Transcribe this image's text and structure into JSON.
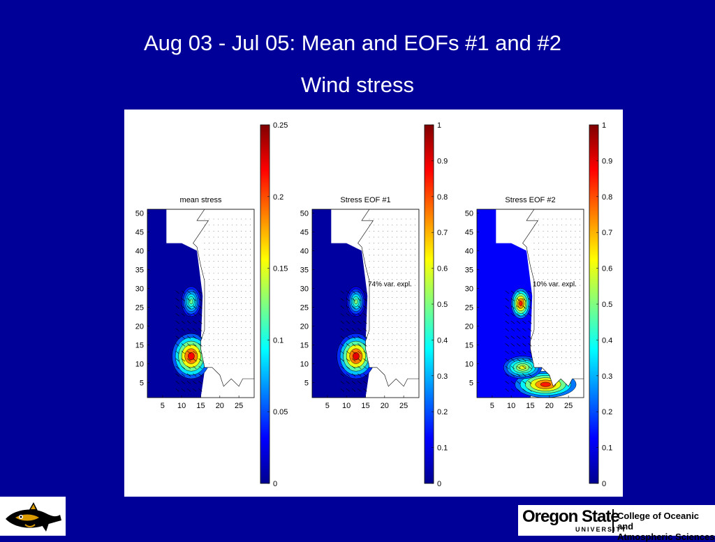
{
  "slide": {
    "title": "Aug 03 - Jul 05: Mean and EOFs #1 and #2",
    "subtitle": "Wind stress"
  },
  "footer": {
    "university_name": "Oregon State",
    "university_word": "UNIVERSITY",
    "college_line1": "College of Oceanic and",
    "college_line2": "Atmospheric Sciences"
  },
  "colors": {
    "background": "#000099",
    "jet_colormap": [
      "#00008f",
      "#0000ff",
      "#0080ff",
      "#00ffff",
      "#80ff80",
      "#ffff00",
      "#ff8000",
      "#ff0000",
      "#800000"
    ]
  },
  "chart_data": [
    {
      "type": "heatmap",
      "title": "mean stress",
      "x_ticks": [
        5,
        10,
        15,
        20,
        25
      ],
      "y_ticks": [
        5,
        10,
        15,
        20,
        25,
        30,
        35,
        40,
        45,
        50
      ],
      "xlim": [
        1,
        29
      ],
      "ylim": [
        1,
        51
      ],
      "colorbar": {
        "min": 0,
        "max": 0.25,
        "ticks": [
          "0",
          "0.05",
          "0.1",
          "0.15",
          "0.2",
          "0.25"
        ]
      },
      "annotation": "",
      "hotspots": [
        {
          "x": 12.5,
          "y": 12,
          "peak": 0.22,
          "rx": 5,
          "ry": 6
        },
        {
          "x": 12.5,
          "y": 26.5,
          "peak": 0.12,
          "rx": 2.5,
          "ry": 4
        }
      ]
    },
    {
      "type": "heatmap",
      "title": "Stress EOF #1",
      "x_ticks": [
        5,
        10,
        15,
        20,
        25
      ],
      "y_ticks": [
        5,
        10,
        15,
        20,
        25,
        30,
        35,
        40,
        45,
        50
      ],
      "xlim": [
        1,
        29
      ],
      "ylim": [
        1,
        51
      ],
      "colorbar": {
        "min": 0,
        "max": 1,
        "ticks": [
          "0",
          "0.1",
          "0.2",
          "0.3",
          "0.4",
          "0.5",
          "0.6",
          "0.7",
          "0.8",
          "0.9",
          "1"
        ]
      },
      "annotation": "74% var. expl.",
      "hotspots": [
        {
          "x": 12.5,
          "y": 12,
          "peak": 0.9,
          "rx": 5,
          "ry": 6
        },
        {
          "x": 12.5,
          "y": 26.5,
          "peak": 0.5,
          "rx": 2.5,
          "ry": 4
        }
      ]
    },
    {
      "type": "heatmap",
      "title": "Stress EOF #2",
      "x_ticks": [
        5,
        10,
        15,
        20,
        25
      ],
      "y_ticks": [
        5,
        10,
        15,
        20,
        25,
        30,
        35,
        40,
        45,
        50
      ],
      "xlim": [
        1,
        29
      ],
      "ylim": [
        1,
        51
      ],
      "colorbar": {
        "min": 0,
        "max": 1,
        "ticks": [
          "0",
          "0.1",
          "0.2",
          "0.3",
          "0.4",
          "0.5",
          "0.6",
          "0.7",
          "0.8",
          "0.9",
          "1"
        ]
      },
      "annotation": "10% var. expl.",
      "hotspots": [
        {
          "x": 12.5,
          "y": 26,
          "peak": 0.85,
          "rx": 2.5,
          "ry": 4
        },
        {
          "x": 19,
          "y": 4.5,
          "peak": 0.85,
          "rx": 8,
          "ry": 3.5
        },
        {
          "x": 13,
          "y": 9,
          "peak": 0.6,
          "rx": 5,
          "ry": 3
        }
      ]
    }
  ]
}
